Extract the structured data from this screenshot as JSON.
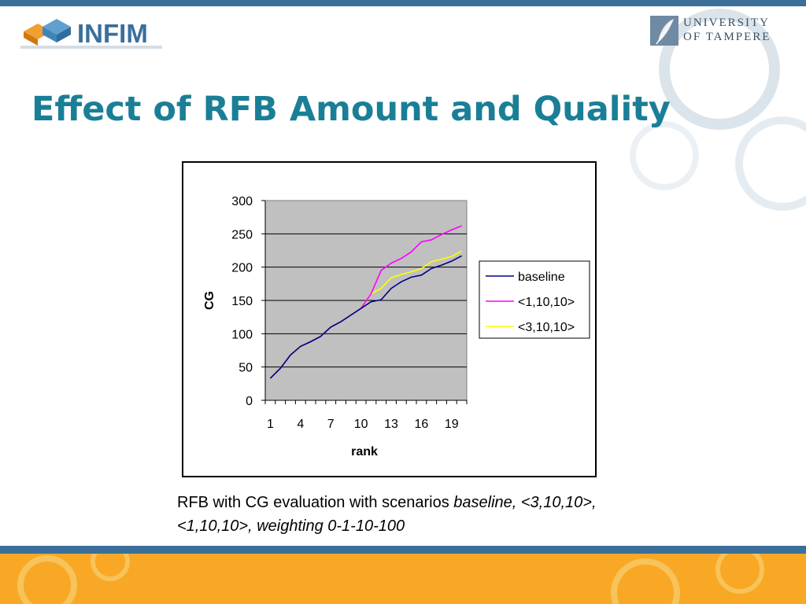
{
  "header": {
    "logo_left": "INFIM",
    "logo_right_line1": "UNIVERSITY",
    "logo_right_line2": "OF TAMPERE"
  },
  "slide": {
    "title": "Effect of RFB Amount and Quality",
    "caption_normal": "RFB with CG evaluation with scenarios ",
    "caption_italic": "baseline, <3,10,10>, <1,10,10>, weighting 0-1-10-100"
  },
  "colors": {
    "title": "#1a7f96",
    "top_band": "#3b6e99",
    "bottom_band": "#f9a825",
    "plot_area": "#c0c0c0",
    "baseline": "#000080",
    "s_1_10_10": "#ff00ff",
    "s_3_10_10": "#ffff00"
  },
  "chart_data": {
    "type": "line",
    "title": "",
    "xlabel": "rank",
    "ylabel": "CG",
    "x": [
      1,
      2,
      3,
      4,
      5,
      6,
      7,
      8,
      9,
      10,
      11,
      12,
      13,
      14,
      15,
      16,
      17,
      18,
      19,
      20
    ],
    "x_tick_labels": [
      "1",
      "4",
      "7",
      "10",
      "13",
      "16",
      "19"
    ],
    "y_tick_labels": [
      "0",
      "50",
      "100",
      "150",
      "200",
      "250",
      "300"
    ],
    "ylim": [
      0,
      300
    ],
    "grid": "horizontal",
    "legend_position": "right",
    "series": [
      {
        "name": "baseline",
        "color": "#000080",
        "values": [
          33,
          48,
          68,
          81,
          88,
          96,
          110,
          118,
          128,
          138,
          148,
          151,
          168,
          178,
          185,
          188,
          198,
          203,
          209,
          217
        ]
      },
      {
        "name": "<1,10,10>",
        "color": "#ff00ff",
        "values": [
          33,
          48,
          68,
          81,
          88,
          96,
          110,
          118,
          128,
          138,
          160,
          195,
          206,
          213,
          223,
          238,
          241,
          249,
          256,
          262
        ]
      },
      {
        "name": "<3,10,10>",
        "color": "#ffff00",
        "values": [
          33,
          48,
          68,
          81,
          88,
          96,
          110,
          118,
          128,
          138,
          160,
          168,
          184,
          189,
          193,
          198,
          208,
          212,
          216,
          224
        ]
      }
    ]
  }
}
